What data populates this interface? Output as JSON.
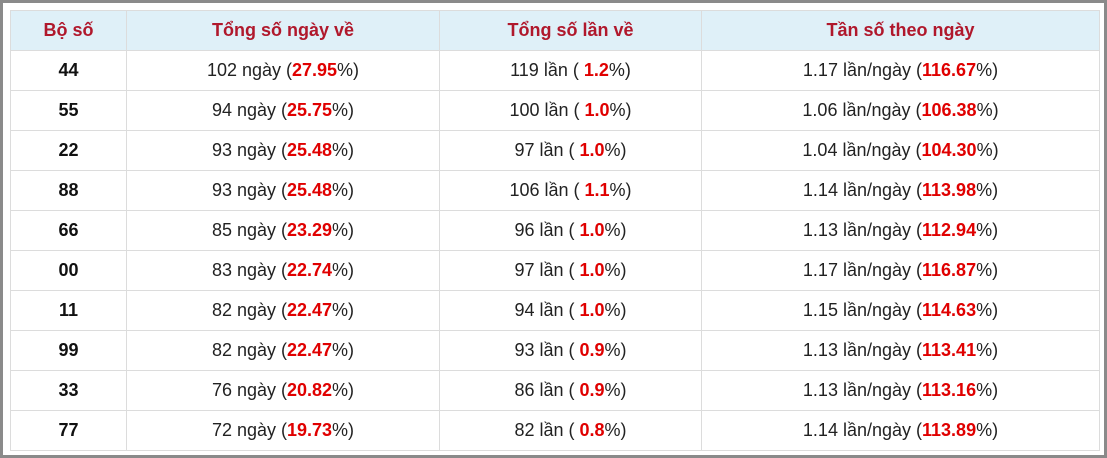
{
  "table": {
    "header": [
      "Bộ số",
      "Tổng số ngày về",
      "Tổng số lần về",
      "Tần số theo ngày"
    ],
    "rows": [
      [
        "44",
        [
          "102 ngày (",
          "27.95",
          "%)"
        ],
        [
          "119 lần ( ",
          "1.2",
          "%)"
        ],
        [
          "1.17 lần/ngày (",
          "116.67",
          "%)"
        ]
      ],
      [
        "55",
        [
          "94 ngày (",
          "25.75",
          "%)"
        ],
        [
          "100 lần ( ",
          "1.0",
          "%)"
        ],
        [
          "1.06 lần/ngày (",
          "106.38",
          "%)"
        ]
      ],
      [
        "22",
        [
          "93 ngày (",
          "25.48",
          "%)"
        ],
        [
          "97 lần ( ",
          "1.0",
          "%)"
        ],
        [
          "1.04 lần/ngày (",
          "104.30",
          "%)"
        ]
      ],
      [
        "88",
        [
          "93 ngày (",
          "25.48",
          "%)"
        ],
        [
          "106 lần ( ",
          "1.1",
          "%)"
        ],
        [
          "1.14 lần/ngày (",
          "113.98",
          "%)"
        ]
      ],
      [
        "66",
        [
          "85 ngày (",
          "23.29",
          "%)"
        ],
        [
          "96 lần ( ",
          "1.0",
          "%)"
        ],
        [
          "1.13 lần/ngày (",
          "112.94",
          "%)"
        ]
      ],
      [
        "00",
        [
          "83 ngày (",
          "22.74",
          "%)"
        ],
        [
          "97 lần ( ",
          "1.0",
          "%)"
        ],
        [
          "1.17 lần/ngày (",
          "116.87",
          "%)"
        ]
      ],
      [
        "11",
        [
          "82 ngày (",
          "22.47",
          "%)"
        ],
        [
          "94 lần ( ",
          "1.0",
          "%)"
        ],
        [
          "1.15 lần/ngày (",
          "114.63",
          "%)"
        ]
      ],
      [
        "99",
        [
          "82 ngày (",
          "22.47",
          "%)"
        ],
        [
          "93 lần ( ",
          "0.9",
          "%)"
        ],
        [
          "1.13 lần/ngày (",
          "113.41",
          "%)"
        ]
      ],
      [
        "33",
        [
          "76 ngày (",
          "20.82",
          "%)"
        ],
        [
          "86 lần ( ",
          "0.9",
          "%)"
        ],
        [
          "1.13 lần/ngày (",
          "113.16",
          "%)"
        ]
      ],
      [
        "77",
        [
          "72 ngày (",
          "19.73",
          "%)"
        ],
        [
          "82 lần ( ",
          "0.8",
          "%)"
        ],
        [
          "1.14 lần/ngày (",
          "113.89",
          "%)"
        ]
      ]
    ]
  }
}
